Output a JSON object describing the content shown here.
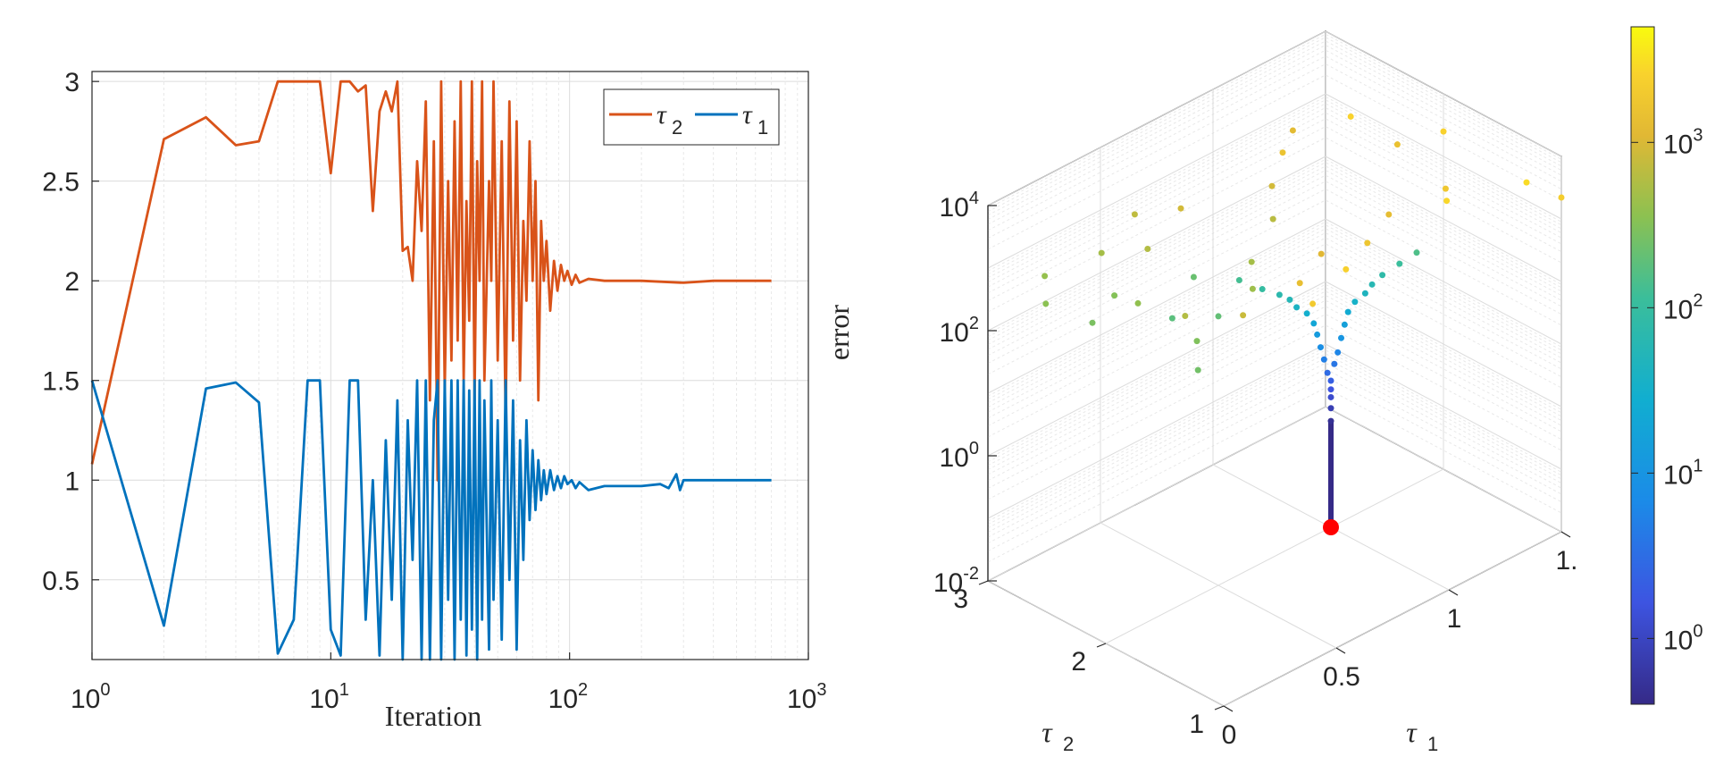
{
  "chart_data": [
    {
      "type": "line",
      "xscale": "log",
      "xlabel": "Iteration",
      "ylabel": "",
      "xlim": [
        1,
        1000
      ],
      "ylim": [
        0.1,
        3.05
      ],
      "x_ticks": [
        {
          "value": 1,
          "base": "10",
          "exp": "0"
        },
        {
          "value": 10,
          "base": "10",
          "exp": "1"
        },
        {
          "value": 100,
          "base": "10",
          "exp": "2"
        },
        {
          "value": 1000,
          "base": "10",
          "exp": "3"
        }
      ],
      "y_ticks": [
        {
          "value": 0.5,
          "label": "0.5"
        },
        {
          "value": 1,
          "label": "1"
        },
        {
          "value": 1.5,
          "label": "1.5"
        },
        {
          "value": 2,
          "label": "2"
        },
        {
          "value": 2.5,
          "label": "2.5"
        },
        {
          "value": 3,
          "label": "3"
        }
      ],
      "grid": true,
      "legend_position": "top-right",
      "series": [
        {
          "name": "τ",
          "subscript": "2",
          "color": "#D95319",
          "points": [
            [
              1,
              1.08
            ],
            [
              2,
              2.71
            ],
            [
              3,
              2.82
            ],
            [
              4,
              2.68
            ],
            [
              5,
              2.7
            ],
            [
              6,
              3.0
            ],
            [
              7,
              3.0
            ],
            [
              8,
              3.0
            ],
            [
              9,
              3.0
            ],
            [
              10,
              2.54
            ],
            [
              11,
              3.0
            ],
            [
              12,
              3.0
            ],
            [
              13,
              2.95
            ],
            [
              14,
              2.98
            ],
            [
              15,
              2.35
            ],
            [
              16,
              2.85
            ],
            [
              17,
              2.95
            ],
            [
              18,
              2.85
            ],
            [
              19,
              3.0
            ],
            [
              20,
              2.15
            ],
            [
              21,
              2.17
            ],
            [
              22,
              2.0
            ],
            [
              23,
              2.6
            ],
            [
              24,
              2.25
            ],
            [
              25,
              2.9
            ],
            [
              26,
              1.4
            ],
            [
              27,
              2.7
            ],
            [
              28,
              1.0
            ],
            [
              29,
              3.0
            ],
            [
              30,
              1.45
            ],
            [
              31,
              2.5
            ],
            [
              32,
              1.6
            ],
            [
              33,
              2.8
            ],
            [
              34,
              1.7
            ],
            [
              35,
              3.0
            ],
            [
              36,
              1.5
            ],
            [
              37,
              2.4
            ],
            [
              38,
              1.8
            ],
            [
              39,
              3.0
            ],
            [
              40,
              1.4
            ],
            [
              41,
              2.6
            ],
            [
              42,
              2.0
            ],
            [
              43,
              3.0
            ],
            [
              44,
              1.5
            ],
            [
              46,
              2.5
            ],
            [
              47,
              2.0
            ],
            [
              48,
              3.0
            ],
            [
              50,
              1.6
            ],
            [
              52,
              2.7
            ],
            [
              54,
              1.3
            ],
            [
              56,
              2.9
            ],
            [
              58,
              1.7
            ],
            [
              60,
              2.8
            ],
            [
              62,
              1.5
            ],
            [
              64,
              2.3
            ],
            [
              66,
              1.9
            ],
            [
              68,
              2.7
            ],
            [
              70,
              2.0
            ],
            [
              72,
              2.5
            ],
            [
              74,
              1.4
            ],
            [
              76,
              2.3
            ],
            [
              78,
              2.0
            ],
            [
              80,
              2.2
            ],
            [
              83,
              1.85
            ],
            [
              86,
              2.1
            ],
            [
              89,
              1.95
            ],
            [
              92,
              2.08
            ],
            [
              95,
              2.0
            ],
            [
              98,
              2.05
            ],
            [
              102,
              1.98
            ],
            [
              106,
              2.03
            ],
            [
              110,
              1.99
            ],
            [
              120,
              2.01
            ],
            [
              140,
              2.0
            ],
            [
              200,
              2.0
            ],
            [
              300,
              1.99
            ],
            [
              400,
              2.0
            ],
            [
              700,
              2.0
            ]
          ]
        },
        {
          "name": "τ",
          "subscript": "1",
          "color": "#0072BD",
          "points": [
            [
              1,
              1.5
            ],
            [
              2,
              0.27
            ],
            [
              3,
              1.46
            ],
            [
              4,
              1.49
            ],
            [
              5,
              1.39
            ],
            [
              6,
              0.13
            ],
            [
              7,
              0.3
            ],
            [
              8,
              1.5
            ],
            [
              9,
              1.5
            ],
            [
              10,
              0.25
            ],
            [
              11,
              0.12
            ],
            [
              12,
              1.5
            ],
            [
              13,
              1.5
            ],
            [
              14,
              0.3
            ],
            [
              15,
              1.0
            ],
            [
              16,
              0.12
            ],
            [
              17,
              1.2
            ],
            [
              18,
              0.4
            ],
            [
              19,
              1.4
            ],
            [
              20,
              0.1
            ],
            [
              21,
              1.3
            ],
            [
              22,
              0.6
            ],
            [
              23,
              1.5
            ],
            [
              24,
              0.1
            ],
            [
              25,
              1.5
            ],
            [
              26,
              0.1
            ],
            [
              27,
              1.3
            ],
            [
              28,
              1.5
            ],
            [
              29,
              0.1
            ],
            [
              30,
              1.5
            ],
            [
              31,
              0.4
            ],
            [
              32,
              1.5
            ],
            [
              33,
              0.1
            ],
            [
              34,
              1.5
            ],
            [
              35,
              0.3
            ],
            [
              36,
              1.5
            ],
            [
              37,
              0.12
            ],
            [
              38,
              1.45
            ],
            [
              39,
              0.25
            ],
            [
              40,
              1.5
            ],
            [
              41,
              0.1
            ],
            [
              42,
              1.5
            ],
            [
              43,
              0.3
            ],
            [
              44,
              1.4
            ],
            [
              46,
              0.15
            ],
            [
              47,
              1.5
            ],
            [
              48,
              0.4
            ],
            [
              50,
              1.3
            ],
            [
              52,
              0.2
            ],
            [
              54,
              1.5
            ],
            [
              56,
              0.5
            ],
            [
              58,
              1.4
            ],
            [
              60,
              0.15
            ],
            [
              62,
              1.2
            ],
            [
              64,
              0.6
            ],
            [
              66,
              1.3
            ],
            [
              68,
              0.8
            ],
            [
              70,
              1.15
            ],
            [
              72,
              0.85
            ],
            [
              74,
              1.1
            ],
            [
              76,
              0.9
            ],
            [
              78,
              1.05
            ],
            [
              80,
              0.93
            ],
            [
              83,
              1.05
            ],
            [
              86,
              0.95
            ],
            [
              89,
              1.02
            ],
            [
              92,
              0.96
            ],
            [
              95,
              1.02
            ],
            [
              98,
              0.98
            ],
            [
              102,
              1.0
            ],
            [
              106,
              0.96
            ],
            [
              110,
              0.99
            ],
            [
              120,
              0.95
            ],
            [
              140,
              0.97
            ],
            [
              200,
              0.97
            ],
            [
              240,
              0.98
            ],
            [
              260,
              0.96
            ],
            [
              280,
              1.03
            ],
            [
              290,
              0.95
            ],
            [
              300,
              1.0
            ],
            [
              320,
              1.0
            ],
            [
              700,
              1.0
            ]
          ]
        }
      ]
    },
    {
      "type": "scatter",
      "zscale": "log",
      "xlabel": "τ",
      "xlabel_sub": "1",
      "ylabel": "τ",
      "ylabel_sub": "2",
      "zlabel": "error",
      "x_ticks": [
        {
          "value": 0,
          "label": "0"
        },
        {
          "value": 0.5,
          "label": "0.5"
        },
        {
          "value": 1,
          "label": "1"
        },
        {
          "value": 1.5,
          "label": "1."
        }
      ],
      "y_ticks": [
        {
          "value": 1,
          "label": "1"
        },
        {
          "value": 2,
          "label": "2"
        },
        {
          "value": 3,
          "label": "3"
        }
      ],
      "z_ticks": [
        {
          "value": 0.01,
          "base": "10",
          "exp": "-2"
        },
        {
          "value": 1,
          "base": "10",
          "exp": "0"
        },
        {
          "value": 100,
          "base": "10",
          "exp": "2"
        },
        {
          "value": 10000,
          "base": "10",
          "exp": "4"
        }
      ],
      "colorbar": {
        "colormap": "parula",
        "scale": "log",
        "ticks": [
          {
            "value": 1,
            "base": "10",
            "exp": "0"
          },
          {
            "value": 10,
            "base": "10",
            "exp": "1"
          },
          {
            "value": 100,
            "base": "10",
            "exp": "2"
          },
          {
            "value": 1000,
            "base": "10",
            "exp": "3"
          }
        ]
      },
      "optimum_marker": {
        "tau1": 1,
        "tau2": 2,
        "error": 0.01,
        "color": "#FF0000"
      },
      "points": [
        [
          1,
          2,
          0.5
        ],
        [
          1,
          2,
          0.8
        ],
        [
          1,
          2,
          1.2
        ],
        [
          1,
          2,
          1.6
        ],
        [
          1,
          2,
          2.2
        ],
        [
          0.99,
          2.01,
          3
        ],
        [
          1.01,
          1.99,
          4
        ],
        [
          0.98,
          2.02,
          5
        ],
        [
          1.02,
          1.98,
          6
        ],
        [
          0.97,
          2.03,
          8
        ],
        [
          1.03,
          1.97,
          10
        ],
        [
          0.96,
          2.04,
          13
        ],
        [
          1.04,
          1.96,
          16
        ],
        [
          0.95,
          2.05,
          20
        ],
        [
          1.05,
          1.95,
          25
        ],
        [
          0.93,
          2.07,
          30
        ],
        [
          1.07,
          1.93,
          35
        ],
        [
          0.9,
          2.1,
          40
        ],
        [
          1.1,
          1.9,
          45
        ],
        [
          0.88,
          2.12,
          55
        ],
        [
          1.12,
          1.88,
          60
        ],
        [
          0.85,
          2.15,
          70
        ],
        [
          1.15,
          1.85,
          80
        ],
        [
          0.8,
          2.2,
          95
        ],
        [
          1.2,
          1.8,
          110
        ],
        [
          0.75,
          2.3,
          130
        ],
        [
          1.25,
          1.75,
          150
        ],
        [
          0.5,
          2.0,
          200
        ],
        [
          0.3,
          1.8,
          300
        ],
        [
          0.2,
          1.6,
          250
        ],
        [
          0.4,
          2.2,
          180
        ],
        [
          0.6,
          2.4,
          220
        ],
        [
          0.3,
          2.5,
          320
        ],
        [
          0.2,
          2.9,
          400
        ],
        [
          0.1,
          2.7,
          350
        ],
        [
          0.4,
          2.8,
          500
        ],
        [
          0.5,
          2.6,
          600
        ],
        [
          0.6,
          2.9,
          700
        ],
        [
          0.7,
          2.7,
          900
        ],
        [
          0.3,
          2.3,
          380
        ],
        [
          0.15,
          2.4,
          280
        ],
        [
          1.4,
          2.2,
          1500
        ],
        [
          1.5,
          2.0,
          2500
        ],
        [
          1.3,
          1.6,
          1800
        ],
        [
          1.45,
          1.2,
          3000
        ],
        [
          1.5,
          1.0,
          2200
        ],
        [
          1.2,
          1.4,
          2800
        ],
        [
          1.35,
          2.5,
          2600
        ],
        [
          1.1,
          2.6,
          1600
        ],
        [
          1.25,
          2.8,
          1200
        ],
        [
          1.0,
          2.5,
          900
        ],
        [
          0.9,
          2.3,
          650
        ],
        [
          0.8,
          1.7,
          1100
        ],
        [
          0.6,
          1.5,
          1400
        ],
        [
          0.5,
          1.2,
          2000
        ],
        [
          0.7,
          1.3,
          2400
        ],
        [
          0.9,
          1.5,
          1700
        ],
        [
          1.1,
          1.7,
          1300
        ],
        [
          0.4,
          1.6,
          800
        ],
        [
          0.3,
          1.9,
          600
        ],
        [
          0.7,
          2.1,
          500
        ],
        [
          0.6,
          1.9,
          450
        ]
      ]
    }
  ]
}
